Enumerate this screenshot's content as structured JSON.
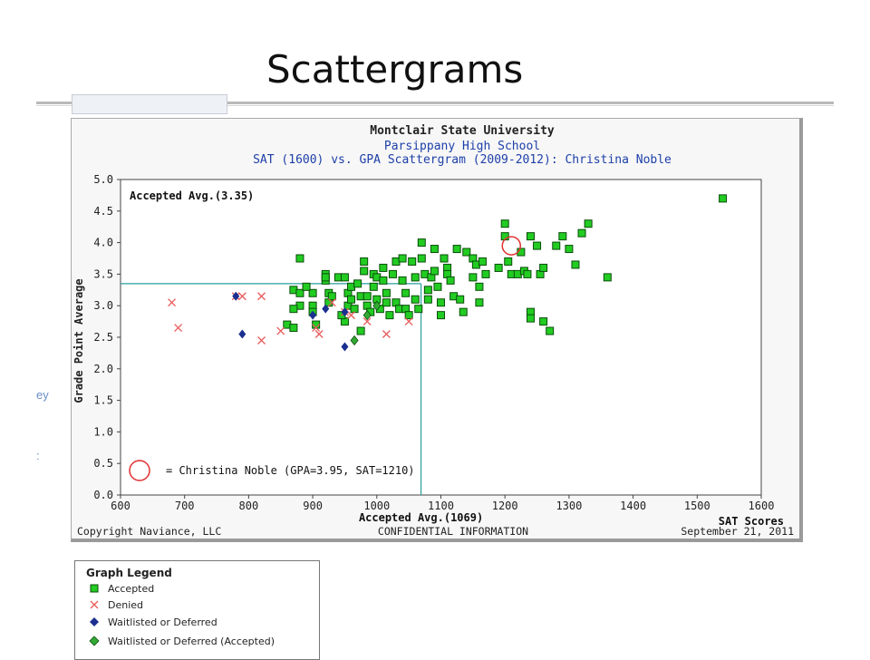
{
  "slide": {
    "title": "Scattergrams"
  },
  "side_fragments": [
    "ey",
    ":"
  ],
  "header": {
    "line1": "Montclair State University",
    "line2": "Parsippany High School",
    "line3": "SAT (1600) vs. GPA Scattergram (2009-2012): Christina Noble"
  },
  "footer": {
    "left": "Copyright Naviance, LLC",
    "center": "CONFIDENTIAL INFORMATION",
    "right": "September 21, 2011"
  },
  "legend": {
    "title": "Graph Legend",
    "items": [
      {
        "symbol": "accepted",
        "label": "Accepted"
      },
      {
        "symbol": "denied",
        "label": "Denied"
      },
      {
        "symbol": "waitlisted",
        "label": "Waitlisted or Deferred"
      },
      {
        "symbol": "waitlisted_accepted",
        "label": "Waitlisted or Deferred (Accepted)"
      }
    ]
  },
  "colors": {
    "accepted": "#22cc22",
    "denied": "#e85a5a",
    "waitlisted": "#1a2f8f",
    "waitlisted_accepted": "#33aa33",
    "avg_line": "#2a9d9d",
    "student": "#e03030",
    "header_blue": "#1d3fa8"
  },
  "chart_data": {
    "type": "scatter",
    "title": "Montclair State University",
    "xlabel": "SAT Scores",
    "ylabel": "Grade Point Average",
    "xlim": [
      600,
      1600
    ],
    "ylim": [
      0.0,
      5.0
    ],
    "x_ticks": [
      600,
      700,
      800,
      900,
      1000,
      1100,
      1200,
      1300,
      1400,
      1500,
      1600
    ],
    "y_ticks": [
      "0.0",
      "0.5",
      "1.0",
      "1.5",
      "2.0",
      "2.5",
      "3.0",
      "3.5",
      "4.0",
      "4.5",
      "5.0"
    ],
    "grid": false,
    "averages": {
      "gpa": 3.35,
      "sat": 1069,
      "gpa_label": "Accepted Avg.(3.35)",
      "sat_label": "Accepted Avg.(1069)"
    },
    "student": {
      "gpa": 3.95,
      "sat": 1210,
      "label": "= Christina Noble (GPA=3.95, SAT=1210)"
    },
    "series": [
      {
        "name": "Accepted",
        "points": [
          [
            880,
            3.75
          ],
          [
            870,
            3.25
          ],
          [
            880,
            3.2
          ],
          [
            880,
            3.0
          ],
          [
            860,
            2.7
          ],
          [
            870,
            2.95
          ],
          [
            900,
            3.2
          ],
          [
            900,
            3.0
          ],
          [
            900,
            2.9
          ],
          [
            905,
            2.7
          ],
          [
            920,
            3.5
          ],
          [
            920,
            3.4
          ],
          [
            920,
            3.45
          ],
          [
            925,
            3.2
          ],
          [
            925,
            3.05
          ],
          [
            940,
            3.45
          ],
          [
            950,
            3.45
          ],
          [
            955,
            3.2
          ],
          [
            955,
            3.0
          ],
          [
            950,
            2.75
          ],
          [
            960,
            3.3
          ],
          [
            960,
            3.1
          ],
          [
            965,
            2.95
          ],
          [
            970,
            3.35
          ],
          [
            975,
            3.15
          ],
          [
            980,
            3.7
          ],
          [
            980,
            3.55
          ],
          [
            985,
            3.15
          ],
          [
            985,
            3.0
          ],
          [
            990,
            2.9
          ],
          [
            995,
            3.5
          ],
          [
            995,
            3.3
          ],
          [
            1000,
            3.45
          ],
          [
            1000,
            3.1
          ],
          [
            1005,
            2.95
          ],
          [
            1010,
            3.6
          ],
          [
            1010,
            3.4
          ],
          [
            1015,
            3.2
          ],
          [
            1015,
            3.05
          ],
          [
            1020,
            2.85
          ],
          [
            1025,
            3.5
          ],
          [
            1030,
            3.7
          ],
          [
            1030,
            3.05
          ],
          [
            1035,
            2.95
          ],
          [
            1040,
            3.75
          ],
          [
            1040,
            3.4
          ],
          [
            1045,
            3.2
          ],
          [
            1045,
            2.95
          ],
          [
            1050,
            2.85
          ],
          [
            1055,
            3.7
          ],
          [
            1060,
            3.45
          ],
          [
            1060,
            3.1
          ],
          [
            1065,
            2.95
          ],
          [
            1070,
            3.75
          ],
          [
            1070,
            4.0
          ],
          [
            1075,
            3.5
          ],
          [
            1080,
            3.25
          ],
          [
            1080,
            3.1
          ],
          [
            1085,
            3.45
          ],
          [
            1090,
            3.9
          ],
          [
            1090,
            3.55
          ],
          [
            1095,
            3.3
          ],
          [
            1100,
            3.05
          ],
          [
            1100,
            2.85
          ],
          [
            1105,
            3.75
          ],
          [
            1110,
            3.6
          ],
          [
            1110,
            3.5
          ],
          [
            1115,
            3.4
          ],
          [
            1120,
            3.15
          ],
          [
            1125,
            3.9
          ],
          [
            1130,
            3.1
          ],
          [
            1135,
            2.9
          ],
          [
            1140,
            3.85
          ],
          [
            1150,
            3.75
          ],
          [
            1150,
            3.45
          ],
          [
            1155,
            3.65
          ],
          [
            1160,
            3.3
          ],
          [
            1160,
            3.05
          ],
          [
            1165,
            3.7
          ],
          [
            1170,
            3.5
          ],
          [
            1190,
            3.6
          ],
          [
            1200,
            4.3
          ],
          [
            1200,
            4.1
          ],
          [
            1205,
            3.7
          ],
          [
            1210,
            3.5
          ],
          [
            1220,
            3.5
          ],
          [
            1225,
            3.85
          ],
          [
            1230,
            3.55
          ],
          [
            1235,
            3.5
          ],
          [
            1240,
            4.1
          ],
          [
            1240,
            2.9
          ],
          [
            1240,
            2.8
          ],
          [
            1250,
            3.95
          ],
          [
            1255,
            3.5
          ],
          [
            1260,
            3.6
          ],
          [
            1260,
            2.75
          ],
          [
            1270,
            2.6
          ],
          [
            1280,
            3.95
          ],
          [
            1290,
            4.1
          ],
          [
            1300,
            3.9
          ],
          [
            1310,
            3.65
          ],
          [
            1320,
            4.15
          ],
          [
            1330,
            4.3
          ],
          [
            1360,
            3.45
          ],
          [
            1540,
            4.7
          ],
          [
            870,
            2.65
          ],
          [
            890,
            3.3
          ],
          [
            930,
            3.15
          ],
          [
            945,
            2.85
          ],
          [
            975,
            2.6
          ]
        ]
      },
      {
        "name": "Denied",
        "points": [
          [
            680,
            3.05
          ],
          [
            690,
            2.65
          ],
          [
            780,
            3.15
          ],
          [
            790,
            3.15
          ],
          [
            820,
            3.15
          ],
          [
            820,
            2.45
          ],
          [
            850,
            2.6
          ],
          [
            910,
            2.55
          ],
          [
            930,
            3.05
          ],
          [
            950,
            2.9
          ],
          [
            985,
            2.75
          ],
          [
            1015,
            2.55
          ],
          [
            1050,
            2.75
          ],
          [
            960,
            2.85
          ],
          [
            905,
            2.65
          ]
        ]
      },
      {
        "name": "Waitlisted or Deferred",
        "points": [
          [
            780,
            3.15
          ],
          [
            790,
            2.55
          ],
          [
            900,
            2.85
          ],
          [
            920,
            2.95
          ],
          [
            950,
            2.9
          ],
          [
            950,
            2.35
          ],
          [
            965,
            2.45
          ]
        ]
      },
      {
        "name": "Waitlisted or Deferred (Accepted)",
        "points": [
          [
            985,
            2.85
          ],
          [
            1000,
            3.0
          ],
          [
            965,
            2.45
          ]
        ]
      }
    ]
  }
}
